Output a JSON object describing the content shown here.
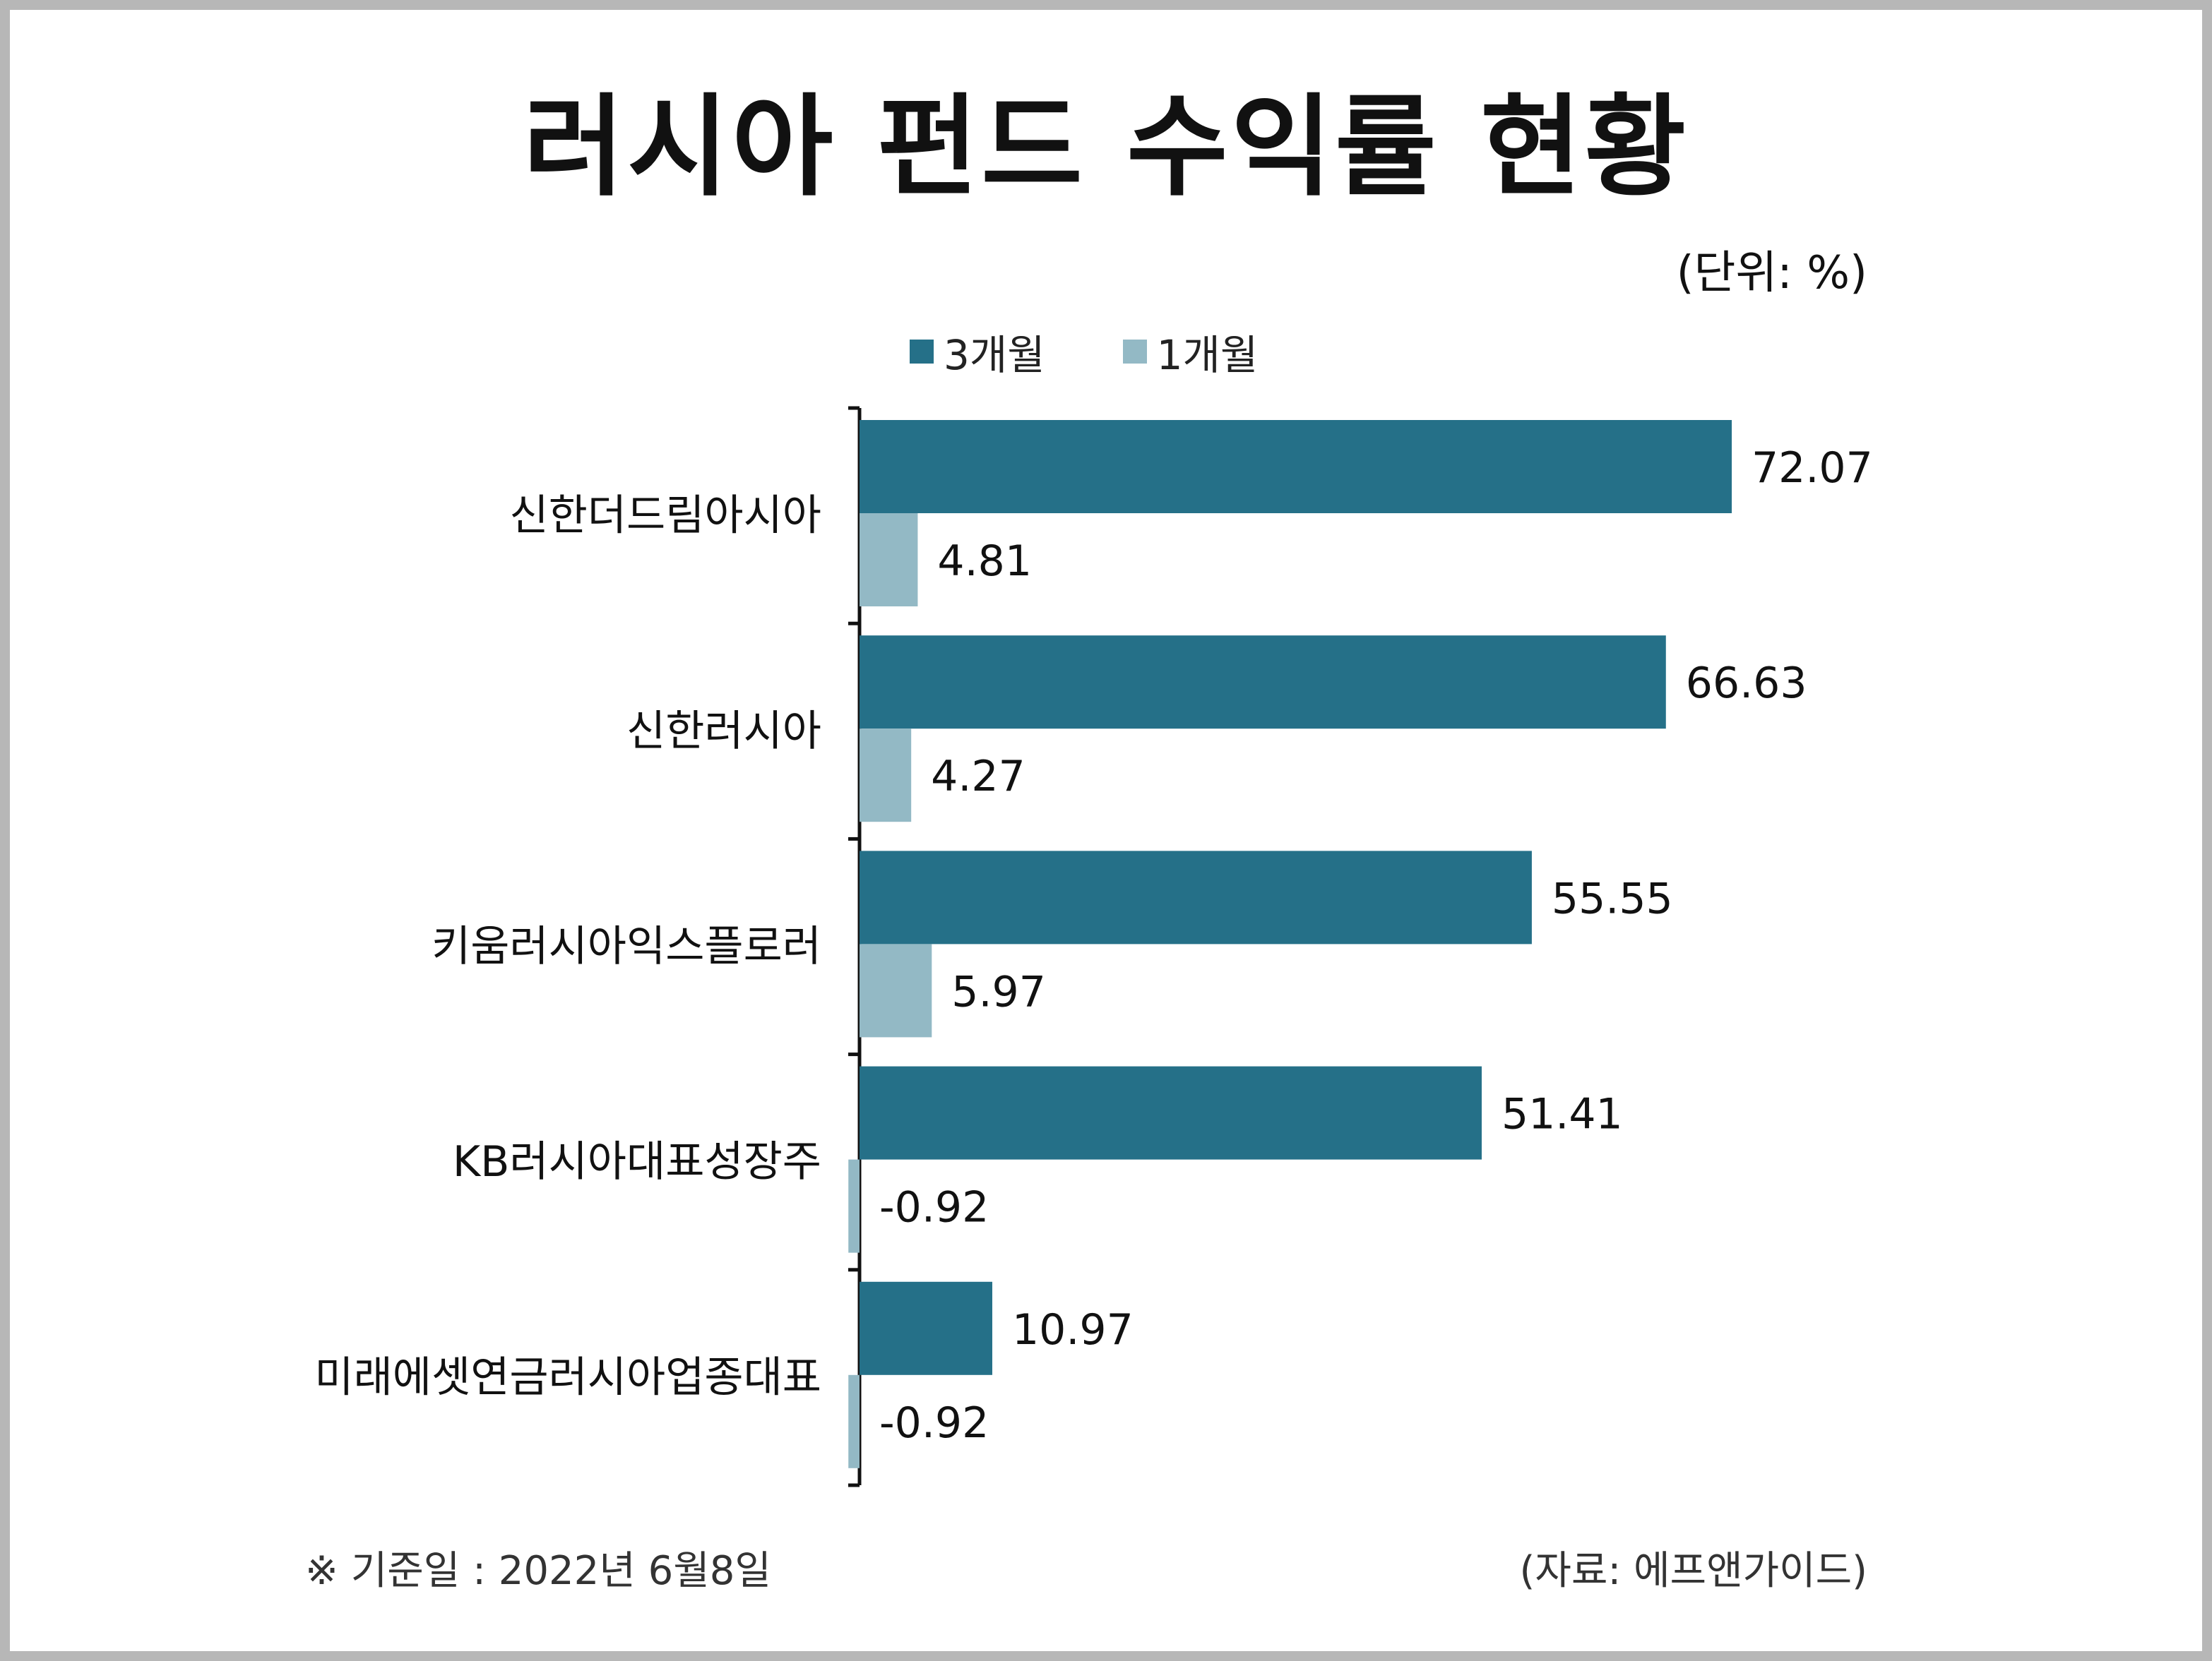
{
  "title": "러시아 펀드 수익률 현황",
  "unit_note": "(단위: %)",
  "footnote": "※ 기준일 : 2022년 6월8일",
  "source": "(자료: 에프앤가이드)",
  "colors": {
    "series_3m": "#257088",
    "series_1m": "#93b9c5",
    "axis": "#111111"
  },
  "chart_data": {
    "type": "bar",
    "orientation": "horizontal",
    "categories": [
      "신한더드림아시아",
      "신한러시아",
      "키움러시아익스플로러",
      "KB러시아대표성장주",
      "미래에셋연금러시아업종대표"
    ],
    "series": [
      {
        "name": "3개월",
        "values": [
          72.07,
          66.63,
          55.55,
          51.41,
          10.97
        ],
        "labels": [
          "72.07",
          "66.63",
          "55.55",
          "51.41",
          "10.97"
        ]
      },
      {
        "name": "1개월",
        "values": [
          4.81,
          4.27,
          5.97,
          -0.92,
          -0.92
        ],
        "labels": [
          "4.81",
          "4.27",
          "5.97",
          "-0.92",
          "-0.92"
        ]
      }
    ],
    "legend": "top",
    "grid": false
  }
}
